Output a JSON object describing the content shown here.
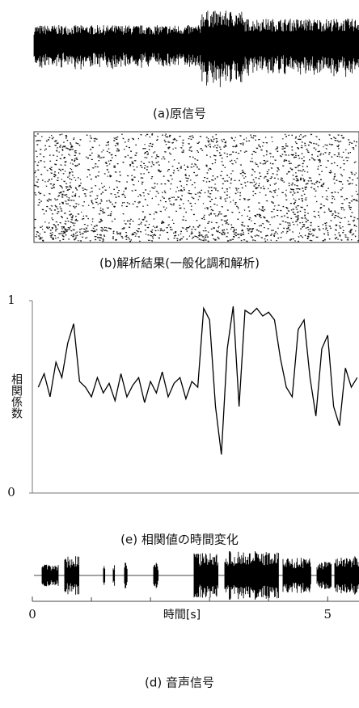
{
  "panels": [
    {
      "caption": "(a)原信号"
    },
    {
      "caption": "(b)解析結果(一般化調和解析)"
    },
    {
      "caption": "(e) 相関値の時間変化",
      "chart": {
        "type": "line",
        "ylabel": "相関係数",
        "ylim": [
          0,
          1
        ],
        "yticks": [
          0,
          1
        ],
        "color": "#000000",
        "x": [
          0.1,
          0.2,
          0.3,
          0.4,
          0.5,
          0.6,
          0.7,
          0.8,
          0.9,
          1.0,
          1.1,
          1.2,
          1.3,
          1.4,
          1.5,
          1.6,
          1.7,
          1.8,
          1.9,
          2.0,
          2.1,
          2.2,
          2.3,
          2.4,
          2.5,
          2.6,
          2.7,
          2.8,
          2.9,
          3.0,
          3.1,
          3.2,
          3.3,
          3.4,
          3.5,
          3.6,
          3.7,
          3.8,
          3.9,
          4.0,
          4.1,
          4.2,
          4.3,
          4.4,
          4.5,
          4.6,
          4.7,
          4.8,
          4.9,
          5.0,
          5.1,
          5.2,
          5.3,
          5.4,
          5.5
        ],
        "values": [
          0.55,
          0.62,
          0.5,
          0.68,
          0.6,
          0.78,
          0.88,
          0.58,
          0.55,
          0.5,
          0.6,
          0.52,
          0.57,
          0.48,
          0.62,
          0.5,
          0.56,
          0.6,
          0.47,
          0.58,
          0.52,
          0.63,
          0.5,
          0.57,
          0.6,
          0.49,
          0.58,
          0.55,
          0.96,
          0.9,
          0.45,
          0.2,
          0.75,
          0.97,
          0.45,
          0.95,
          0.93,
          0.96,
          0.92,
          0.94,
          0.9,
          0.7,
          0.55,
          0.5,
          0.85,
          0.9,
          0.6,
          0.4,
          0.75,
          0.82,
          0.45,
          0.35,
          0.65,
          0.55,
          0.6
        ]
      }
    },
    {
      "caption": "(d) 音声信号",
      "xlabel": "時間[s]",
      "xlim": [
        0,
        5.53
      ],
      "xticks": [
        0,
        5
      ],
      "minor_xticks": [
        1,
        2,
        3,
        4
      ]
    }
  ]
}
